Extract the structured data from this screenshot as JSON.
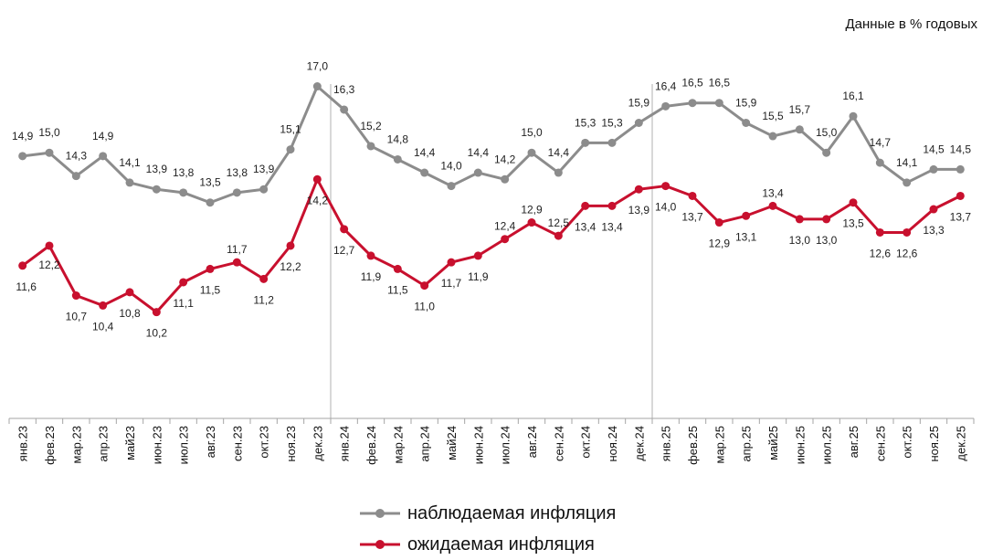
{
  "unit_note": "Данные в % годовых",
  "colors": {
    "observed": "#8c8c8c",
    "expected": "#c8102e",
    "axis": "#a6a6a6"
  },
  "chart_data": {
    "type": "line",
    "title": "",
    "xlabel": "",
    "ylabel": "",
    "ylim": [
      7,
      18.5
    ],
    "grid": false,
    "legend_position": "bottom",
    "categories": [
      "янв.23",
      "фев.23",
      "мар.23",
      "апр.23",
      "май23",
      "июн.23",
      "июл.23",
      "авг.23",
      "сен.23",
      "окт.23",
      "ноя.23",
      "дек.23",
      "янв.24",
      "фев.24",
      "мар.24",
      "апр.24",
      "май24",
      "июн.24",
      "июл.24",
      "авг.24",
      "сен.24",
      "окт.24",
      "ноя.24",
      "дек.24",
      "янв.25",
      "фев.25",
      "мар.25",
      "апр.25",
      "май25",
      "июн.25",
      "июл.25",
      "авг.25",
      "сен.25",
      "окт.25",
      "ноя.25",
      "дек.25"
    ],
    "year_separators_after": [
      "дек.23",
      "дек.24"
    ],
    "series": [
      {
        "name": "наблюдаемая инфляция",
        "color": "#8c8c8c",
        "values": [
          14.9,
          15.0,
          14.3,
          14.9,
          14.1,
          13.9,
          13.8,
          13.5,
          13.8,
          13.9,
          15.1,
          17.0,
          16.3,
          15.2,
          14.8,
          14.4,
          14.0,
          14.4,
          14.2,
          15.0,
          14.4,
          15.3,
          15.3,
          15.9,
          16.4,
          16.5,
          16.5,
          15.9,
          15.5,
          15.7,
          15.0,
          16.1,
          14.7,
          14.1,
          14.5,
          14.5
        ],
        "labels": [
          "14,9",
          "15,0",
          "14,3",
          "14,9",
          "14,1",
          "13,9",
          "13,8",
          "13,5",
          "13,8",
          "13,9",
          "15,1",
          "17,0",
          "16,3",
          "15,2",
          "14,8",
          "14,4",
          "14,0",
          "14,4",
          "14,2",
          "15,0",
          "14,4",
          "15,3",
          "15,3",
          "15,9",
          "16,4",
          "16,5",
          "16,5",
          "15,9",
          "15,5",
          "15,7",
          "15,0",
          "16,1",
          "14,7",
          "14,1",
          "14,5",
          "14,5"
        ]
      },
      {
        "name": "ожидаемая инфляция",
        "color": "#c8102e",
        "values": [
          11.6,
          12.2,
          10.7,
          10.4,
          10.8,
          10.2,
          11.1,
          11.5,
          11.7,
          11.2,
          12.2,
          14.2,
          12.7,
          11.9,
          11.5,
          11.0,
          11.7,
          11.9,
          12.4,
          12.9,
          12.5,
          13.4,
          13.4,
          13.9,
          14.0,
          13.7,
          12.9,
          13.1,
          13.4,
          13.0,
          13.0,
          13.5,
          12.6,
          12.6,
          13.3,
          13.7
        ],
        "labels": [
          "11,6",
          "12,2",
          "10,7",
          "10,4",
          "10,8",
          "10,2",
          "11,1",
          "11,5",
          "11,7",
          "11,2",
          "12,2",
          "14,2",
          "12,7",
          "11,9",
          "11,5",
          "11,0",
          "11,7",
          "11,9",
          "12,4",
          "12,9",
          "12,5",
          "13,4",
          "13,4",
          "13,9",
          "14,0",
          "13,7",
          "12,9",
          "13,1",
          "13,4",
          "13,0",
          "13,0",
          "13,5",
          "12,6",
          "12,6",
          "13,3",
          "13,7"
        ]
      }
    ]
  }
}
